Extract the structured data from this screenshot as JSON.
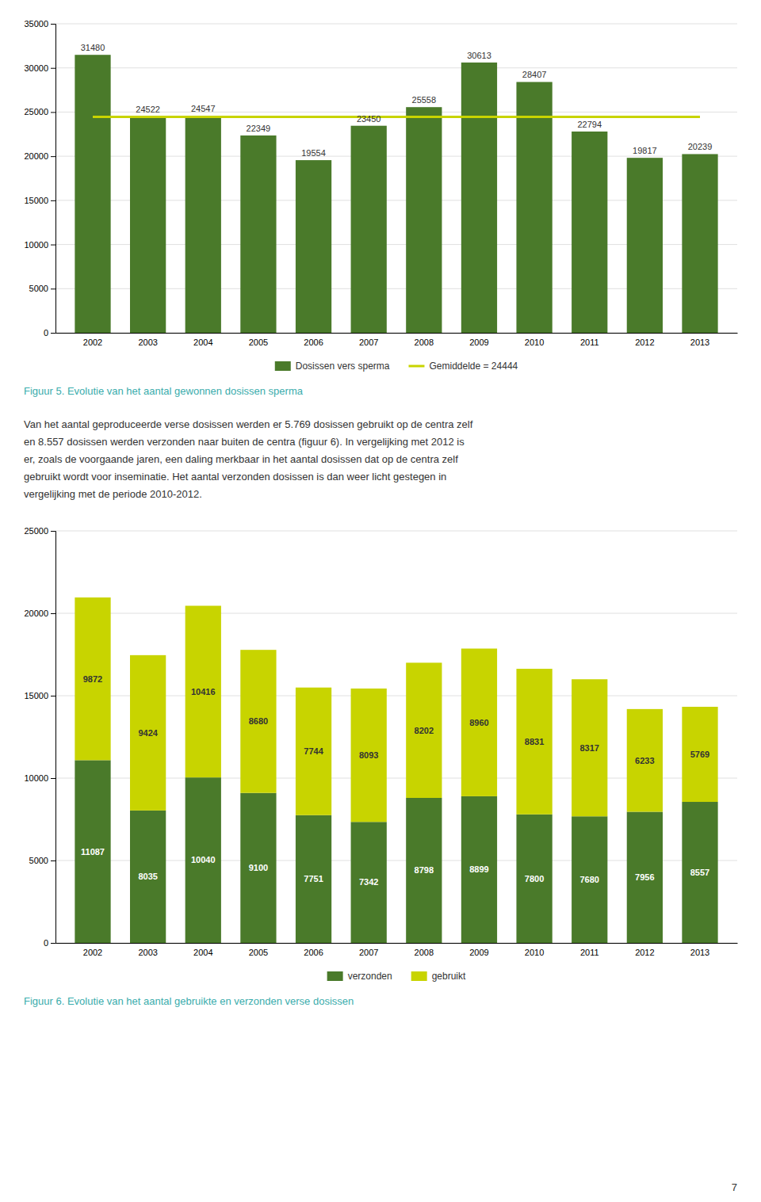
{
  "chart_data": [
    {
      "type": "bar",
      "title": "Figuur 5. Evolutie van het aantal gewonnen dosissen sperma",
      "categories": [
        "2002",
        "2003",
        "2004",
        "2005",
        "2006",
        "2007",
        "2008",
        "2009",
        "2010",
        "2011",
        "2012",
        "2013"
      ],
      "series": [
        {
          "name": "Dosissen vers sperma",
          "type": "bar",
          "color": "#4a7a2a",
          "values": [
            31480,
            24522,
            24547,
            22349,
            19554,
            23450,
            25558,
            30613,
            28407,
            22794,
            19817,
            20239
          ]
        },
        {
          "name": "Gemiddelde = 24444",
          "type": "line",
          "color": "#c8d400",
          "values": [
            24444,
            24444,
            24444,
            24444,
            24444,
            24444,
            24444,
            24444,
            24444,
            24444,
            24444,
            24444
          ]
        }
      ],
      "ylim": [
        0,
        35000
      ],
      "yticks": [
        0,
        5000,
        10000,
        15000,
        20000,
        25000,
        30000,
        35000
      ],
      "grid": true,
      "legend": "bottom",
      "data_labels": true
    },
    {
      "type": "bar",
      "title": "Figuur 6. Evolutie van het aantal gebruikte en verzonden verse dosissen",
      "categories": [
        "2002",
        "2003",
        "2004",
        "2005",
        "2006",
        "2007",
        "2008",
        "2009",
        "2010",
        "2011",
        "2012",
        "2013"
      ],
      "series": [
        {
          "name": "verzonden",
          "color": "#4a7a2a",
          "values": [
            11087,
            8035,
            10040,
            9100,
            7751,
            7342,
            8798,
            8899,
            7800,
            7680,
            7956,
            8557
          ]
        },
        {
          "name": "gebruikt",
          "color": "#c8d400",
          "values": [
            9872,
            9424,
            10416,
            8680,
            7744,
            8093,
            8202,
            8960,
            8831,
            8317,
            6233,
            5769
          ]
        }
      ],
      "ylim": [
        0,
        25000
      ],
      "yticks": [
        0,
        5000,
        10000,
        15000,
        20000,
        25000
      ],
      "grid": true,
      "legend": "bottom",
      "stacked": true,
      "data_labels": true
    }
  ],
  "text_lines": [
    "Van het aantal geproduceerde verse dosissen werden er 5.769 dosissen gebruikt op de centra zelf",
    "en 8.557 dosissen werden verzonden naar buiten de centra (figuur 6). In vergelijking met 2012 is",
    "er, zoals de voorgaande jaren, een daling merkbaar in het aantal dosissen dat op de centra zelf",
    "gebruikt wordt voor inseminatie. Het aantal verzonden dosissen is dan weer licht gestegen in",
    "vergelijking met de periode 2010-2012."
  ],
  "page_number": "7"
}
